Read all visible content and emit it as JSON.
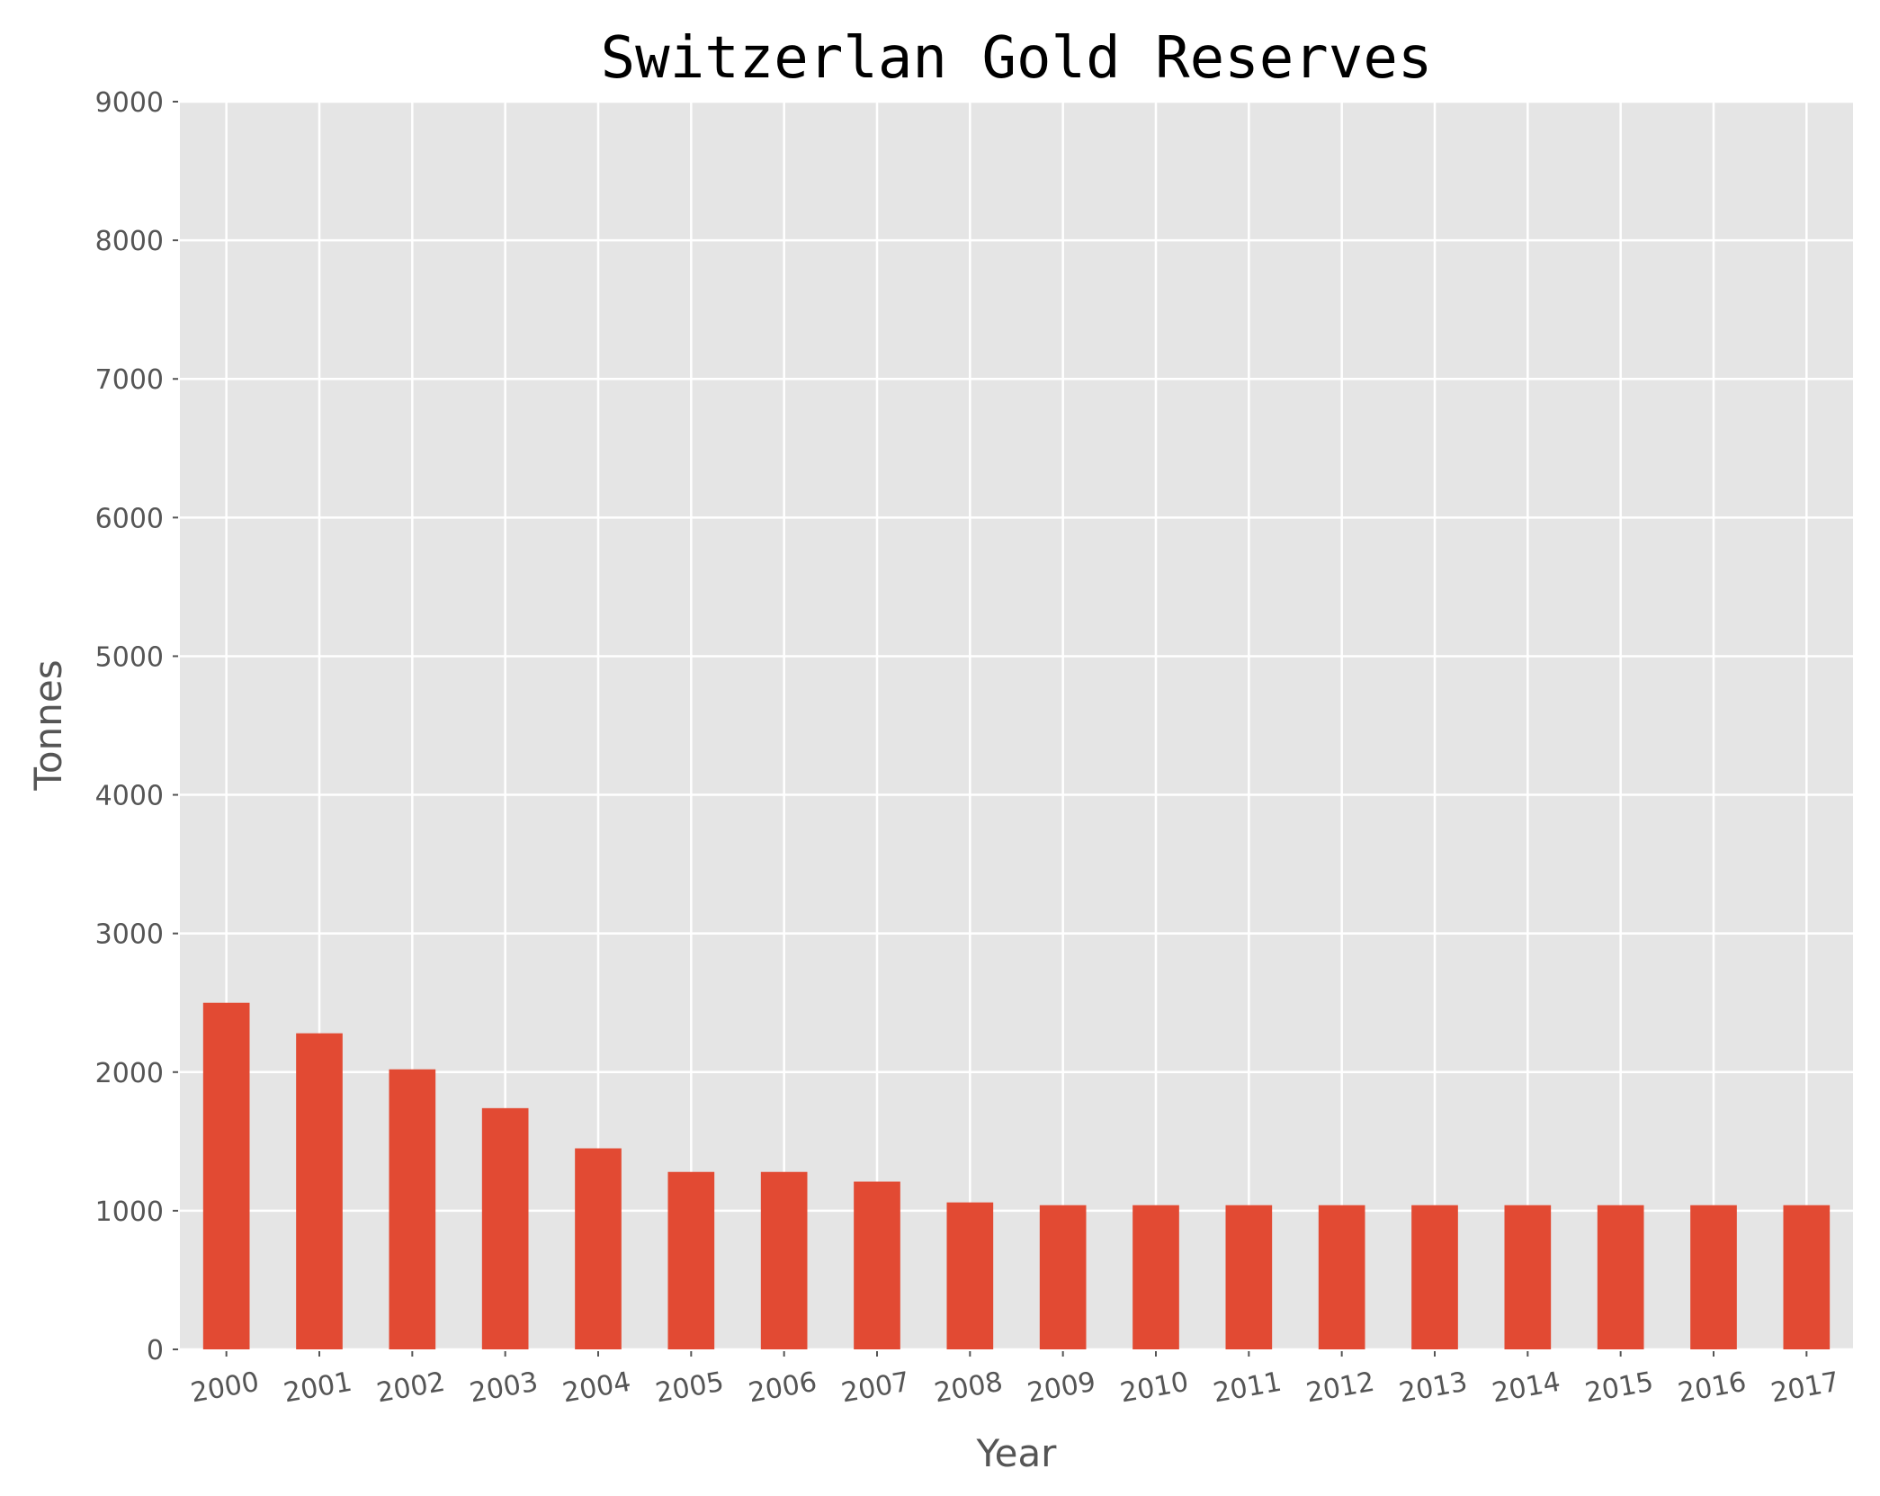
{
  "chart_data": {
    "type": "bar",
    "title": "Switzerlan Gold Reserves",
    "xlabel": "Year",
    "ylabel": "Tonnes",
    "categories": [
      "2000",
      "2001",
      "2002",
      "2003",
      "2004",
      "2005",
      "2006",
      "2007",
      "2008",
      "2009",
      "2010",
      "2011",
      "2012",
      "2013",
      "2014",
      "2015",
      "2016",
      "2017"
    ],
    "values": [
      2500,
      2280,
      2020,
      1740,
      1450,
      1280,
      1280,
      1210,
      1060,
      1040,
      1040,
      1040,
      1040,
      1040,
      1040,
      1040,
      1040,
      1040
    ],
    "ylim": [
      0,
      9000
    ],
    "yticks": [
      0,
      1000,
      2000,
      3000,
      4000,
      5000,
      6000,
      7000,
      8000,
      9000
    ],
    "grid": true,
    "bar_color": "#E24A33",
    "plot_background": "#E5E5E5",
    "grid_color": "#FFFFFF"
  }
}
